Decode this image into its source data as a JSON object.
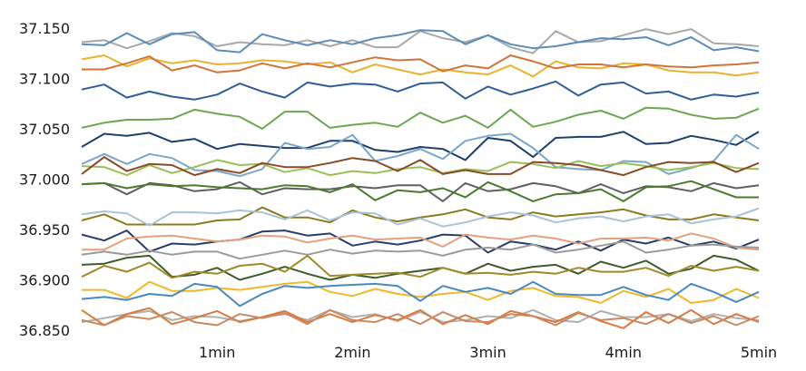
{
  "chart_data": {
    "type": "line",
    "title": "",
    "xlabel": "",
    "ylabel": "",
    "ylim": [
      36.85,
      37.15
    ],
    "xlim": [
      0,
      5
    ],
    "y_ticks": [
      {
        "value": 36.85,
        "label": "36.850"
      },
      {
        "value": 36.9,
        "label": "36.900"
      },
      {
        "value": 36.95,
        "label": "36.950"
      },
      {
        "value": 37.0,
        "label": "37.000"
      },
      {
        "value": 37.05,
        "label": "37.050"
      },
      {
        "value": 37.1,
        "label": "37.100"
      },
      {
        "value": 37.15,
        "label": "37.150"
      }
    ],
    "x_ticks": [
      {
        "value": 1,
        "label": "1min"
      },
      {
        "value": 2,
        "label": "2min"
      },
      {
        "value": 3,
        "label": "3min"
      },
      {
        "value": 4,
        "label": "4min"
      },
      {
        "value": 5,
        "label": "5min"
      }
    ],
    "grid": false,
    "legend": "none",
    "x": [
      0,
      0.167,
      0.333,
      0.5,
      0.667,
      0.833,
      1,
      1.167,
      1.333,
      1.5,
      1.667,
      1.833,
      2,
      2.167,
      2.333,
      2.5,
      2.667,
      2.833,
      3,
      3.167,
      3.333,
      3.5,
      3.667,
      3.833,
      4,
      4.167,
      4.333,
      4.5,
      4.667,
      4.833,
      5
    ],
    "series": [
      {
        "color": "#a8a8a8",
        "values": [
          37.136,
          37.138,
          37.13,
          37.137,
          37.145,
          37.142,
          37.132,
          37.136,
          37.134,
          37.133,
          37.138,
          37.132,
          37.138,
          37.131,
          37.131,
          37.147,
          37.14,
          37.136,
          37.143,
          37.131,
          37.125,
          37.147,
          37.136,
          37.137,
          37.143,
          37.149,
          37.144,
          37.149,
          37.135,
          37.134,
          37.132
        ]
      },
      {
        "color": "#5b8db8",
        "values": [
          37.134,
          37.133,
          37.145,
          37.134,
          37.144,
          37.146,
          37.128,
          37.126,
          37.144,
          37.138,
          37.133,
          37.138,
          37.134,
          37.14,
          37.143,
          37.148,
          37.147,
          37.134,
          37.143,
          37.134,
          37.13,
          37.132,
          37.136,
          37.14,
          37.139,
          37.141,
          37.133,
          37.141,
          37.128,
          37.131,
          37.127
        ]
      },
      {
        "color": "#e8b42e",
        "values": [
          37.119,
          37.123,
          37.112,
          37.12,
          37.115,
          37.118,
          37.114,
          37.115,
          37.118,
          37.117,
          37.114,
          37.116,
          37.106,
          37.114,
          37.109,
          37.104,
          37.109,
          37.106,
          37.104,
          37.113,
          37.102,
          37.117,
          37.111,
          37.11,
          37.115,
          37.114,
          37.108,
          37.106,
          37.106,
          37.103,
          37.106
        ]
      },
      {
        "color": "#d2743a",
        "values": [
          37.109,
          37.109,
          37.115,
          37.122,
          37.108,
          37.113,
          37.106,
          37.108,
          37.115,
          37.11,
          37.115,
          37.111,
          37.116,
          37.121,
          37.118,
          37.119,
          37.107,
          37.113,
          37.11,
          37.123,
          37.117,
          37.11,
          37.114,
          37.114,
          37.111,
          37.114,
          37.112,
          37.111,
          37.113,
          37.114,
          37.116
        ]
      },
      {
        "color": "#2f5d9a",
        "values": [
          37.089,
          37.094,
          37.081,
          37.087,
          37.082,
          37.079,
          37.084,
          37.095,
          37.087,
          37.081,
          37.096,
          37.092,
          37.095,
          37.094,
          37.087,
          37.095,
          37.096,
          37.08,
          37.092,
          37.084,
          37.09,
          37.097,
          37.083,
          37.094,
          37.096,
          37.085,
          37.087,
          37.079,
          37.084,
          37.082,
          37.086
        ]
      },
      {
        "color": "#6aa84f",
        "values": [
          37.051,
          37.056,
          37.059,
          37.059,
          37.06,
          37.069,
          37.065,
          37.062,
          37.05,
          37.067,
          37.067,
          37.051,
          37.054,
          37.056,
          37.052,
          37.066,
          37.056,
          37.063,
          37.051,
          37.069,
          37.052,
          37.057,
          37.064,
          37.068,
          37.06,
          37.071,
          37.07,
          37.064,
          37.06,
          37.061,
          37.07
        ]
      },
      {
        "color": "#1f3f6e",
        "values": [
          37.032,
          37.045,
          37.043,
          37.046,
          37.037,
          37.04,
          37.03,
          37.035,
          37.033,
          37.031,
          37.031,
          37.038,
          37.038,
          37.029,
          37.027,
          37.032,
          37.03,
          37.019,
          37.041,
          37.038,
          37.022,
          37.041,
          37.042,
          37.042,
          37.047,
          37.035,
          37.036,
          37.043,
          37.039,
          37.034,
          37.047
        ]
      },
      {
        "color": "#7aa6cc",
        "values": [
          37.015,
          37.025,
          37.015,
          37.025,
          37.021,
          37.009,
          37.008,
          37.003,
          37.01,
          37.036,
          37.03,
          37.032,
          37.044,
          37.018,
          37.023,
          37.03,
          37.02,
          37.038,
          37.043,
          37.045,
          37.031,
          37.012,
          37.01,
          37.009,
          37.018,
          37.017,
          37.005,
          37.011,
          37.018,
          37.044,
          37.03
        ]
      },
      {
        "color": "#9bbf57",
        "values": [
          37.013,
          37.012,
          37.004,
          37.014,
          37.006,
          37.012,
          37.019,
          37.014,
          37.015,
          37.007,
          37.011,
          37.004,
          37.008,
          37.006,
          37.01,
          37.012,
          37.006,
          37.01,
          37.008,
          37.017,
          37.015,
          37.011,
          37.018,
          37.013,
          37.016,
          37.013,
          37.009,
          37.012,
          37.016,
          37.011,
          37.01
        ]
      },
      {
        "color": "#8a4a26",
        "values": [
          37.005,
          37.022,
          37.008,
          37.015,
          37.014,
          37.004,
          37.01,
          37.006,
          37.016,
          37.012,
          37.012,
          37.016,
          37.021,
          37.018,
          37.008,
          37.019,
          37.005,
          37.009,
          37.005,
          37.005,
          37.017,
          37.016,
          37.014,
          37.009,
          37.004,
          37.012,
          37.017,
          37.016,
          37.017,
          37.007,
          37.016
        ]
      },
      {
        "color": "#606060",
        "values": [
          36.995,
          36.996,
          36.985,
          36.996,
          36.994,
          36.988,
          36.99,
          36.997,
          36.985,
          36.991,
          36.99,
          36.99,
          36.993,
          36.991,
          36.994,
          36.994,
          36.978,
          36.996,
          36.988,
          36.99,
          36.996,
          36.993,
          36.986,
          36.995,
          36.986,
          36.993,
          36.992,
          36.988,
          36.996,
          36.991,
          36.994
        ]
      },
      {
        "color": "#4b7a2e",
        "values": [
          36.995,
          36.996,
          36.991,
          36.995,
          36.993,
          36.994,
          36.992,
          36.991,
          36.99,
          36.994,
          36.993,
          36.987,
          36.995,
          36.979,
          36.989,
          36.987,
          36.991,
          36.982,
          36.997,
          36.988,
          36.978,
          36.985,
          36.986,
          36.99,
          36.978,
          36.992,
          36.993,
          36.998,
          36.99,
          36.982,
          36.982
        ]
      },
      {
        "color": "#8c7a1e",
        "values": [
          36.959,
          36.965,
          36.955,
          36.955,
          36.955,
          36.955,
          36.959,
          36.96,
          36.972,
          36.962,
          36.962,
          36.957,
          36.969,
          36.962,
          36.958,
          36.962,
          36.965,
          36.97,
          36.962,
          36.96,
          36.967,
          36.963,
          36.965,
          36.967,
          36.97,
          36.964,
          36.96,
          36.96,
          36.965,
          36.962,
          36.959
        ]
      },
      {
        "color": "#a8c4d8",
        "values": [
          36.965,
          36.968,
          36.966,
          36.954,
          36.967,
          36.967,
          36.966,
          36.969,
          36.967,
          36.96,
          36.969,
          36.959,
          36.967,
          36.966,
          36.955,
          36.961,
          36.953,
          36.957,
          36.963,
          36.967,
          36.964,
          36.957,
          36.961,
          36.963,
          36.958,
          36.963,
          36.965,
          36.956,
          36.96,
          36.963,
          36.971
        ]
      },
      {
        "color": "#2a3e6a",
        "values": [
          36.945,
          36.939,
          36.949,
          36.928,
          36.936,
          36.935,
          36.938,
          36.94,
          36.948,
          36.949,
          36.944,
          36.946,
          36.934,
          36.938,
          36.935,
          36.939,
          36.945,
          36.944,
          36.927,
          36.938,
          36.935,
          36.93,
          36.938,
          36.929,
          36.94,
          36.936,
          36.942,
          36.934,
          36.938,
          36.931,
          36.94
        ]
      },
      {
        "color": "#e6a07c",
        "values": [
          36.93,
          36.93,
          36.941,
          36.943,
          36.944,
          36.941,
          36.938,
          36.94,
          36.944,
          36.943,
          36.937,
          36.941,
          36.944,
          36.94,
          36.941,
          36.942,
          36.933,
          36.945,
          36.942,
          36.94,
          36.944,
          36.941,
          36.936,
          36.941,
          36.941,
          36.942,
          36.939,
          36.946,
          36.941,
          36.932,
          36.93
        ]
      },
      {
        "color": "#9b9b9b",
        "values": [
          36.925,
          36.928,
          36.925,
          36.929,
          36.925,
          36.928,
          36.928,
          36.921,
          36.925,
          36.929,
          36.925,
          36.93,
          36.926,
          36.929,
          36.928,
          36.929,
          36.924,
          36.93,
          36.932,
          36.93,
          36.935,
          36.927,
          36.93,
          36.934,
          36.938,
          36.927,
          36.93,
          36.934,
          36.935,
          36.933,
          36.932
        ]
      },
      {
        "color": "#3d5c2a",
        "values": [
          36.915,
          36.916,
          36.922,
          36.924,
          36.903,
          36.905,
          36.912,
          36.9,
          36.906,
          36.913,
          36.906,
          36.9,
          36.905,
          36.902,
          36.906,
          36.909,
          36.912,
          36.906,
          36.916,
          36.909,
          36.913,
          36.915,
          36.906,
          36.918,
          36.912,
          36.919,
          36.906,
          36.911,
          36.924,
          36.92,
          36.909
        ]
      },
      {
        "color": "#a08a28",
        "values": [
          36.903,
          36.914,
          36.908,
          36.917,
          36.902,
          36.908,
          36.906,
          36.914,
          36.916,
          36.908,
          36.924,
          36.904,
          36.905,
          36.906,
          36.907,
          36.903,
          36.912,
          36.906,
          36.907,
          36.905,
          36.908,
          36.906,
          36.912,
          36.908,
          36.908,
          36.912,
          36.904,
          36.914,
          36.909,
          36.913,
          36.909
        ]
      },
      {
        "color": "#f0b82a",
        "values": [
          36.89,
          36.89,
          36.882,
          36.898,
          36.889,
          36.889,
          36.892,
          36.89,
          36.893,
          36.896,
          36.898,
          36.888,
          36.884,
          36.891,
          36.886,
          36.883,
          36.886,
          36.888,
          36.88,
          36.889,
          36.892,
          36.884,
          36.883,
          36.877,
          36.889,
          36.883,
          36.891,
          36.877,
          36.88,
          36.891,
          36.882
        ]
      },
      {
        "color": "#4a88c0",
        "values": [
          36.881,
          36.883,
          36.88,
          36.886,
          36.884,
          36.896,
          36.893,
          36.874,
          36.886,
          36.894,
          36.892,
          36.894,
          36.895,
          36.896,
          36.894,
          36.879,
          36.894,
          36.888,
          36.892,
          36.886,
          36.898,
          36.886,
          36.885,
          36.885,
          36.893,
          36.885,
          36.88,
          36.896,
          36.888,
          36.878,
          36.888
        ]
      },
      {
        "color": "#b0b0b0",
        "values": [
          36.858,
          36.862,
          36.866,
          36.869,
          36.86,
          36.864,
          36.863,
          36.859,
          36.863,
          36.866,
          36.86,
          36.87,
          36.863,
          36.866,
          36.859,
          36.868,
          36.858,
          36.86,
          36.864,
          36.862,
          36.87,
          36.86,
          36.858,
          36.869,
          36.863,
          36.863,
          36.866,
          36.859,
          36.866,
          36.862,
          36.86
        ]
      },
      {
        "color": "#d97a3e",
        "values": [
          36.87,
          36.855,
          36.866,
          36.872,
          36.856,
          36.862,
          36.869,
          36.858,
          36.863,
          36.869,
          36.858,
          36.866,
          36.858,
          36.865,
          36.86,
          36.87,
          36.856,
          36.865,
          36.856,
          36.869,
          36.864,
          36.858,
          36.868,
          36.859,
          36.852,
          36.868,
          36.857,
          36.87,
          36.856,
          36.866,
          36.858
        ]
      },
      {
        "color": "#c98860",
        "values": [
          36.86,
          36.855,
          36.864,
          36.861,
          36.868,
          36.858,
          36.855,
          36.866,
          36.862,
          36.867,
          36.856,
          36.87,
          36.86,
          36.858,
          36.866,
          36.856,
          36.868,
          36.859,
          36.858,
          36.866,
          36.864,
          36.855,
          36.867,
          36.86,
          36.862,
          36.856,
          36.866,
          36.857,
          36.864,
          36.855,
          36.864
        ]
      }
    ]
  }
}
